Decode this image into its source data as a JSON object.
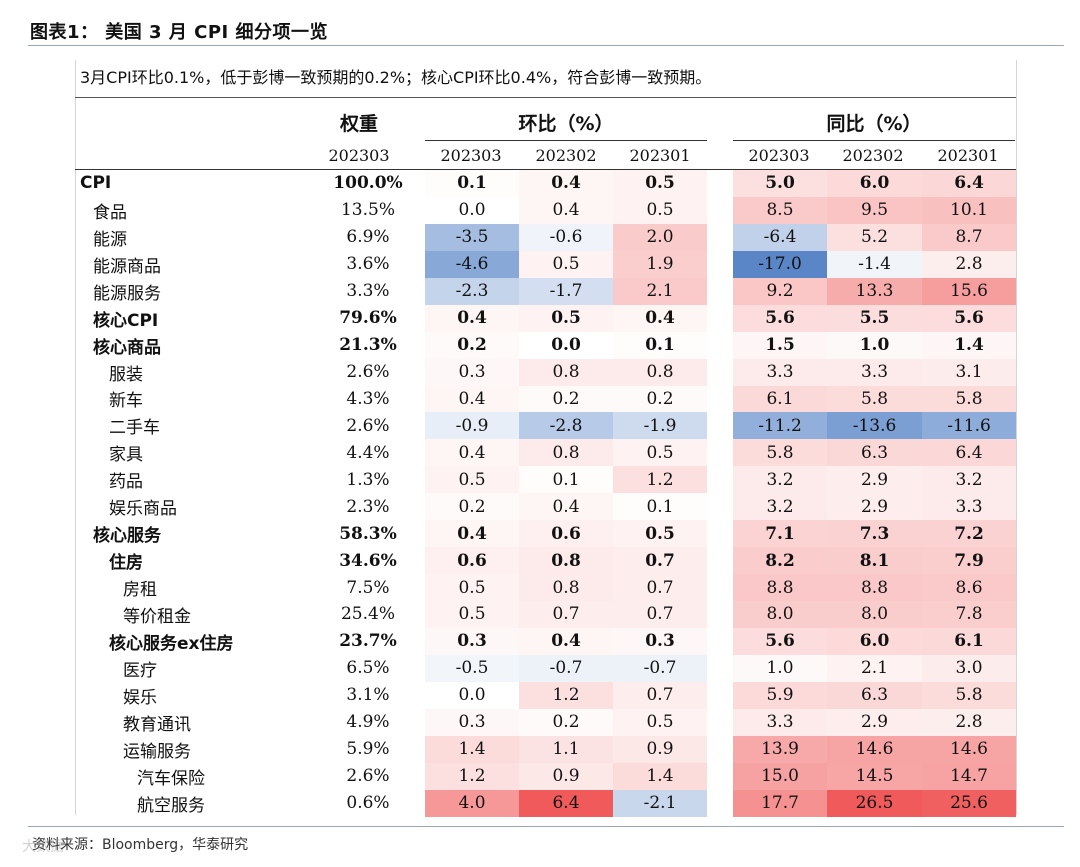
{
  "figure_title": "图表1：  美国 3 月 CPI 细分项一览",
  "summary": "3月CPI环比0.1%，低于彭博一致预期的0.2%；核心CPI环比0.4%，符合彭博一致预期。",
  "headers": {
    "weight": "权重",
    "mom": "环比（%）",
    "yoy": "同比（%）",
    "weight_period": "202303",
    "mom_periods": [
      "202303",
      "202302",
      "202301"
    ],
    "yoy_periods": [
      "202303",
      "202302",
      "202301"
    ]
  },
  "rows": [
    {
      "name": "CPI",
      "indent": 0,
      "bold": true,
      "weight": "100.0%",
      "mom": [
        "0.1",
        "0.4",
        "0.5"
      ],
      "yoy": [
        "5.0",
        "6.0",
        "6.4"
      ]
    },
    {
      "name": "食品",
      "indent": 1,
      "bold": false,
      "weight": "13.5%",
      "mom": [
        "0.0",
        "0.4",
        "0.5"
      ],
      "yoy": [
        "8.5",
        "9.5",
        "10.1"
      ]
    },
    {
      "name": "能源",
      "indent": 1,
      "bold": false,
      "weight": "6.9%",
      "mom": [
        "-3.5",
        "-0.6",
        "2.0"
      ],
      "yoy": [
        "-6.4",
        "5.2",
        "8.7"
      ]
    },
    {
      "name": "能源商品",
      "indent": 2,
      "bold": false,
      "weight": "3.6%",
      "mom": [
        "-4.6",
        "0.5",
        "1.9"
      ],
      "yoy": [
        "-17.0",
        "-1.4",
        "2.8"
      ]
    },
    {
      "name": "能源服务",
      "indent": 2,
      "bold": false,
      "weight": "3.3%",
      "mom": [
        "-2.3",
        "-1.7",
        "2.1"
      ],
      "yoy": [
        "9.2",
        "13.3",
        "15.6"
      ]
    },
    {
      "name": "核心CPI",
      "indent": 1,
      "bold": true,
      "weight": "79.6%",
      "mom": [
        "0.4",
        "0.5",
        "0.4"
      ],
      "yoy": [
        "5.6",
        "5.5",
        "5.6"
      ]
    },
    {
      "name": "核心商品",
      "indent": 2,
      "bold": true,
      "weight": "21.3%",
      "mom": [
        "0.2",
        "0.0",
        "0.1"
      ],
      "yoy": [
        "1.5",
        "1.0",
        "1.4"
      ]
    },
    {
      "name": "服装",
      "indent": 3,
      "bold": false,
      "weight": "2.6%",
      "mom": [
        "0.3",
        "0.8",
        "0.8"
      ],
      "yoy": [
        "3.3",
        "3.3",
        "3.1"
      ]
    },
    {
      "name": "新车",
      "indent": 3,
      "bold": false,
      "weight": "4.3%",
      "mom": [
        "0.4",
        "0.2",
        "0.2"
      ],
      "yoy": [
        "6.1",
        "5.8",
        "5.8"
      ]
    },
    {
      "name": "二手车",
      "indent": 3,
      "bold": false,
      "weight": "2.6%",
      "mom": [
        "-0.9",
        "-2.8",
        "-1.9"
      ],
      "yoy": [
        "-11.2",
        "-13.6",
        "-11.6"
      ]
    },
    {
      "name": "家具",
      "indent": 3,
      "bold": false,
      "weight": "4.4%",
      "mom": [
        "0.4",
        "0.8",
        "0.5"
      ],
      "yoy": [
        "5.8",
        "6.3",
        "6.4"
      ]
    },
    {
      "name": "药品",
      "indent": 3,
      "bold": false,
      "weight": "1.3%",
      "mom": [
        "0.5",
        "0.1",
        "1.2"
      ],
      "yoy": [
        "3.2",
        "2.9",
        "3.2"
      ]
    },
    {
      "name": "娱乐商品",
      "indent": 3,
      "bold": false,
      "weight": "2.3%",
      "mom": [
        "0.2",
        "0.4",
        "0.1"
      ],
      "yoy": [
        "3.2",
        "2.9",
        "3.3"
      ]
    },
    {
      "name": "核心服务",
      "indent": 2,
      "bold": true,
      "weight": "58.3%",
      "mom": [
        "0.4",
        "0.6",
        "0.5"
      ],
      "yoy": [
        "7.1",
        "7.3",
        "7.2"
      ]
    },
    {
      "name": "住房",
      "indent": 3,
      "bold": true,
      "weight": "34.6%",
      "mom": [
        "0.6",
        "0.8",
        "0.7"
      ],
      "yoy": [
        "8.2",
        "8.1",
        "7.9"
      ]
    },
    {
      "name": "房租",
      "indent": 4,
      "bold": false,
      "weight": "7.5%",
      "mom": [
        "0.5",
        "0.8",
        "0.7"
      ],
      "yoy": [
        "8.8",
        "8.8",
        "8.6"
      ]
    },
    {
      "name": "等价租金",
      "indent": 4,
      "bold": false,
      "weight": "25.4%",
      "mom": [
        "0.5",
        "0.7",
        "0.7"
      ],
      "yoy": [
        "8.0",
        "8.0",
        "7.8"
      ]
    },
    {
      "name": "核心服务ex住房",
      "indent": 3,
      "bold": true,
      "weight": "23.7%",
      "mom": [
        "0.3",
        "0.4",
        "0.3"
      ],
      "yoy": [
        "5.6",
        "6.0",
        "6.1"
      ]
    },
    {
      "name": "医疗",
      "indent": 4,
      "bold": false,
      "weight": "6.5%",
      "mom": [
        "-0.5",
        "-0.7",
        "-0.7"
      ],
      "yoy": [
        "1.0",
        "2.1",
        "3.0"
      ]
    },
    {
      "name": "娱乐",
      "indent": 4,
      "bold": false,
      "weight": "3.1%",
      "mom": [
        "0.0",
        "1.2",
        "0.7"
      ],
      "yoy": [
        "5.9",
        "6.3",
        "5.8"
      ]
    },
    {
      "name": "教育通讯",
      "indent": 4,
      "bold": false,
      "weight": "4.9%",
      "mom": [
        "0.3",
        "0.2",
        "0.5"
      ],
      "yoy": [
        "3.3",
        "2.9",
        "2.8"
      ]
    },
    {
      "name": "运输服务",
      "indent": 4,
      "bold": false,
      "weight": "5.9%",
      "mom": [
        "1.4",
        "1.1",
        "0.9"
      ],
      "yoy": [
        "13.9",
        "14.6",
        "14.6"
      ]
    },
    {
      "name": "汽车保险",
      "indent": 5,
      "bold": false,
      "weight": "2.6%",
      "mom": [
        "1.2",
        "0.9",
        "1.4"
      ],
      "yoy": [
        "15.0",
        "14.5",
        "14.7"
      ]
    },
    {
      "name": "航空服务",
      "indent": 5,
      "bold": false,
      "weight": "0.6%",
      "mom": [
        "4.0",
        "6.4",
        "-2.1"
      ],
      "yoy": [
        "17.7",
        "26.5",
        "25.6"
      ]
    }
  ],
  "source": "资料来源：Bloomberg，华泰研究",
  "watermark": "大数据",
  "colors": {
    "negative": "#5a86c8",
    "positive": "#f05a5a",
    "neutral": "#ffffff"
  }
}
